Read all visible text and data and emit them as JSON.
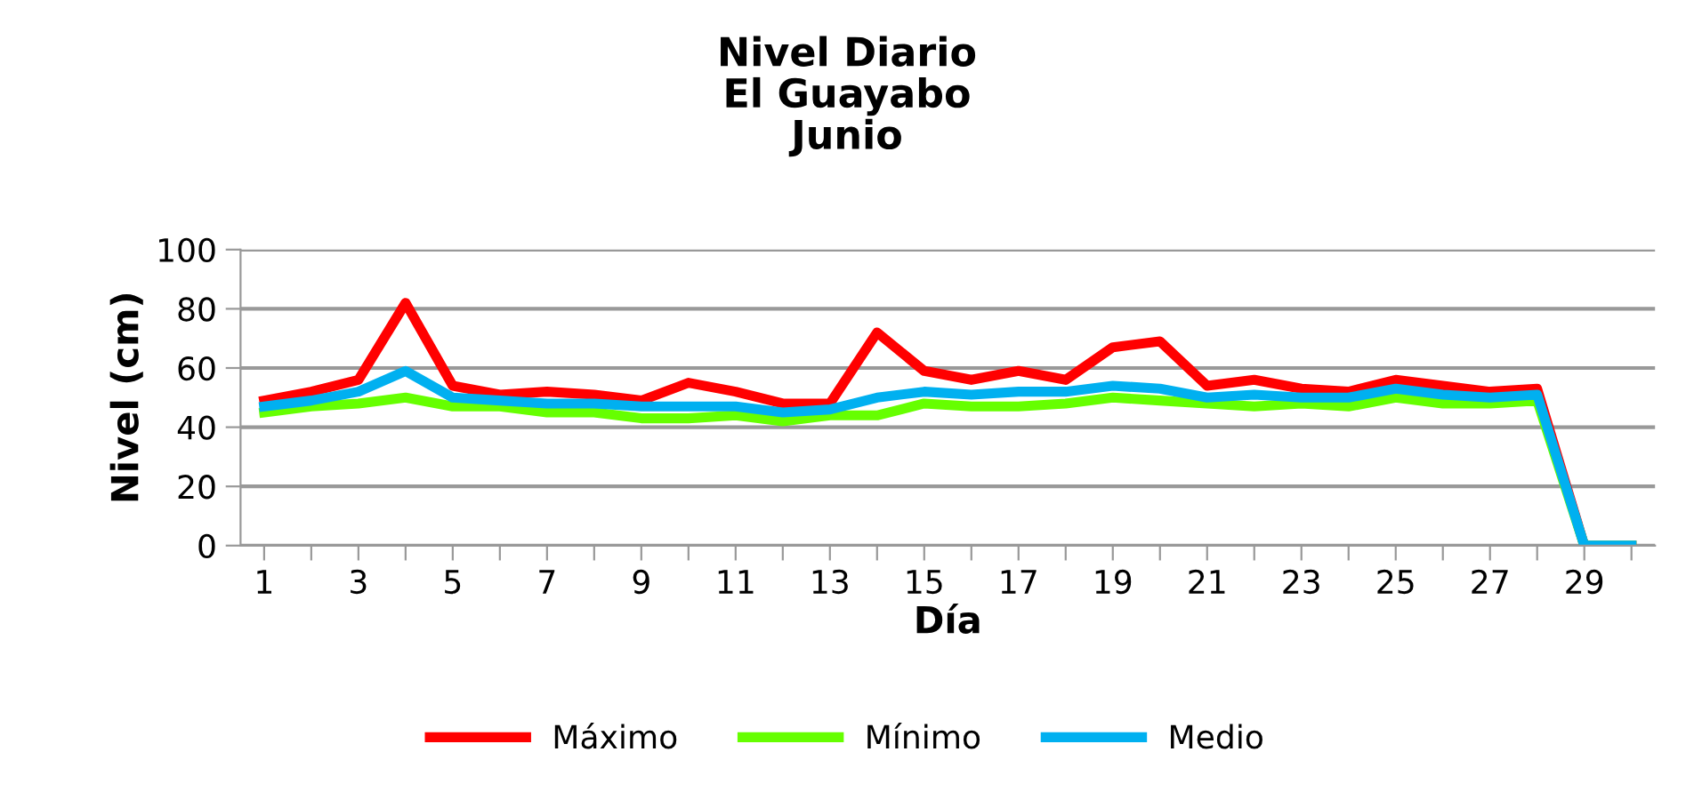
{
  "chart_data": {
    "type": "line",
    "title": "Nivel Diario\nEl Guayabo\nJunio",
    "xlabel": "Día",
    "ylabel": "Nivel (cm)",
    "categories": [
      "1",
      null,
      "3",
      null,
      "5",
      null,
      "7",
      null,
      "9",
      null,
      "11",
      null,
      "13",
      null,
      "15",
      null,
      "17",
      null,
      "19",
      null,
      "21",
      null,
      "23",
      null,
      "25",
      null,
      "27",
      null,
      "29",
      null
    ],
    "series": [
      {
        "name": "Máximo",
        "color": "#ff0000",
        "values": [
          49,
          52,
          56,
          82,
          54,
          51,
          52,
          51,
          49,
          55,
          52,
          48,
          48,
          72,
          59,
          56,
          59,
          56,
          67,
          69,
          54,
          56,
          53,
          52,
          56,
          54,
          52,
          53,
          0,
          0
        ]
      },
      {
        "name": "Mínimo",
        "color": "#66ff00",
        "values": [
          45,
          47,
          48,
          50,
          47,
          47,
          45,
          45,
          43,
          43,
          44,
          42,
          44,
          44,
          48,
          47,
          47,
          48,
          50,
          49,
          48,
          47,
          48,
          47,
          50,
          48,
          48,
          49,
          0,
          0
        ]
      },
      {
        "name": "Medio",
        "color": "#00b0f0",
        "values": [
          47,
          49,
          52,
          59,
          50,
          49,
          48,
          48,
          47,
          47,
          47,
          45,
          46,
          50,
          52,
          51,
          52,
          52,
          54,
          53,
          50,
          51,
          50,
          50,
          53,
          51,
          50,
          51,
          0,
          0
        ]
      }
    ],
    "ylim": [
      0,
      100
    ],
    "yticks": [
      0,
      20,
      40,
      60,
      80,
      100
    ],
    "grid": "y",
    "legend": "bottom",
    "marker": "none",
    "line_style": "solid"
  }
}
